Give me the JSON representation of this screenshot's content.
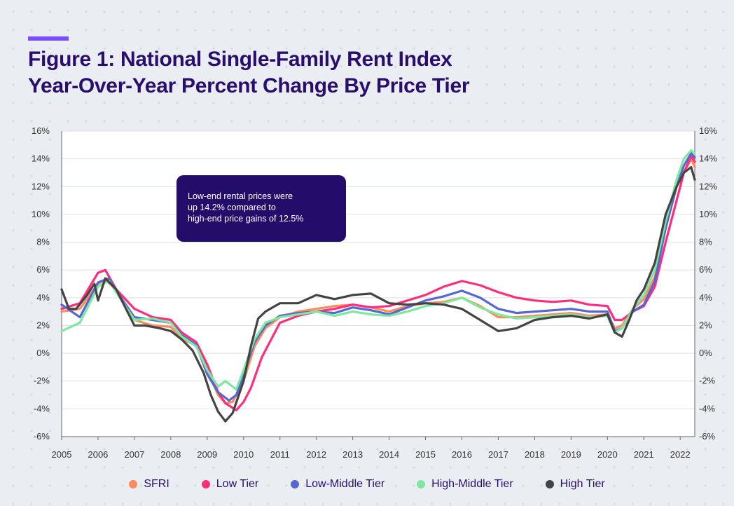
{
  "header": {
    "title_line1": "Figure 1: National Single-Family Rent Index",
    "title_line2": "Year-Over-Year Percent Change By Price Tier"
  },
  "callout": {
    "line1": "Low-end rental prices were",
    "line2": "up 14.2% compared to",
    "line3": "high-end price gains of 12.5%"
  },
  "chart_data": {
    "type": "line",
    "title": "Figure 1: National Single-Family Rent Index Year-Over-Year Percent Change By Price Tier",
    "xlabel": "",
    "ylabel": "",
    "xlim": [
      2005,
      2022.4
    ],
    "ylim": [
      -6,
      16
    ],
    "x_ticks": [
      "2005",
      "2006",
      "2007",
      "2008",
      "2009",
      "2010",
      "2011",
      "2012",
      "2013",
      "2014",
      "2015",
      "2016",
      "2017",
      "2018",
      "2019",
      "2020",
      "2021",
      "2022"
    ],
    "y_ticks": [
      "16%",
      "14%",
      "12%",
      "10%",
      "8%",
      "6%",
      "4%",
      "2%",
      "0%",
      "-2%",
      "-4%",
      "-6%"
    ],
    "grid": "horizontal",
    "legend_position": "bottom",
    "series": [
      {
        "name": "SFRI",
        "color": "#ff8c5a",
        "x": [
          2005,
          2005.5,
          2006,
          2006.2,
          2006.5,
          2007,
          2007.5,
          2008,
          2008.3,
          2008.7,
          2009,
          2009.3,
          2009.5,
          2009.7,
          2010,
          2010.3,
          2010.6,
          2011,
          2011.5,
          2012,
          2012.5,
          2013,
          2013.5,
          2014,
          2014.5,
          2015,
          2015.5,
          2016,
          2016.5,
          2017,
          2017.5,
          2018,
          2018.5,
          2019,
          2019.5,
          2020,
          2020.2,
          2020.4,
          2020.7,
          2021,
          2021.3,
          2021.6,
          2021.9,
          2022.1,
          2022.3,
          2022.4
        ],
        "y": [
          3.0,
          3.2,
          5.0,
          5.3,
          4.6,
          2.4,
          2.0,
          1.9,
          1.0,
          0.6,
          -1.2,
          -3.0,
          -3.6,
          -3.5,
          -2.0,
          0.5,
          1.8,
          2.6,
          3.0,
          3.2,
          3.4,
          3.5,
          3.3,
          3.0,
          3.4,
          3.6,
          3.7,
          4.0,
          3.4,
          2.6,
          2.6,
          2.7,
          2.8,
          2.9,
          2.7,
          2.8,
          1.8,
          2.0,
          3.2,
          3.9,
          5.5,
          9.0,
          12.0,
          13.0,
          14.0,
          13.4
        ]
      },
      {
        "name": "Low Tier",
        "color": "#ff2e7a",
        "x": [
          2005,
          2005.5,
          2006,
          2006.2,
          2006.5,
          2007,
          2007.5,
          2008,
          2008.3,
          2008.7,
          2009,
          2009.3,
          2009.5,
          2009.8,
          2010,
          2010.2,
          2010.5,
          2010.8,
          2011,
          2011.5,
          2012,
          2012.5,
          2013,
          2013.5,
          2014,
          2014.5,
          2015,
          2015.5,
          2016,
          2016.5,
          2017,
          2017.5,
          2018,
          2018.5,
          2019,
          2019.5,
          2020,
          2020.2,
          2020.4,
          2020.7,
          2021,
          2021.3,
          2021.6,
          2021.9,
          2022.1,
          2022.3,
          2022.4
        ],
        "y": [
          3.2,
          3.6,
          5.8,
          6.0,
          4.6,
          3.2,
          2.6,
          2.4,
          1.5,
          0.8,
          -0.8,
          -2.8,
          -3.6,
          -4.1,
          -3.5,
          -2.5,
          -0.3,
          1.2,
          2.2,
          2.7,
          3.0,
          3.2,
          3.5,
          3.3,
          3.4,
          3.8,
          4.2,
          4.8,
          5.2,
          4.9,
          4.4,
          4.0,
          3.8,
          3.7,
          3.8,
          3.5,
          3.4,
          2.4,
          2.4,
          3.0,
          3.4,
          4.8,
          8.0,
          11.0,
          13.0,
          14.2,
          13.8
        ]
      },
      {
        "name": "Low-Middle Tier",
        "color": "#5567d2",
        "x": [
          2005,
          2005.5,
          2006,
          2006.3,
          2006.5,
          2007,
          2007.5,
          2008,
          2008.3,
          2008.7,
          2009,
          2009.3,
          2009.6,
          2009.8,
          2010,
          2010.3,
          2010.6,
          2011,
          2011.5,
          2012,
          2012.5,
          2013,
          2013.5,
          2014,
          2014.5,
          2015,
          2015.5,
          2016,
          2016.5,
          2017,
          2017.5,
          2018,
          2018.5,
          2019,
          2019.5,
          2020,
          2020.2,
          2020.4,
          2020.7,
          2021,
          2021.3,
          2021.6,
          2021.9,
          2022.1,
          2022.3,
          2022.4
        ],
        "y": [
          3.5,
          2.6,
          5.1,
          5.4,
          4.5,
          2.6,
          2.4,
          2.2,
          1.3,
          0.6,
          -1.5,
          -2.8,
          -3.4,
          -3.0,
          -1.5,
          0.8,
          2.0,
          2.7,
          2.9,
          3.0,
          2.9,
          3.3,
          3.1,
          2.8,
          3.3,
          3.8,
          4.1,
          4.5,
          4.0,
          3.2,
          2.9,
          3.0,
          3.1,
          3.2,
          3.0,
          3.0,
          1.6,
          1.8,
          3.0,
          3.5,
          5.2,
          9.0,
          12.0,
          13.5,
          14.4,
          14.1
        ]
      },
      {
        "name": "High-Middle Tier",
        "color": "#7ee8a0",
        "x": [
          2005,
          2005.5,
          2006,
          2006.3,
          2006.5,
          2007,
          2007.5,
          2008,
          2008.3,
          2008.7,
          2009,
          2009.3,
          2009.5,
          2009.8,
          2010,
          2010.3,
          2010.6,
          2011,
          2011.5,
          2012,
          2012.5,
          2013,
          2013.5,
          2014,
          2014.5,
          2015,
          2015.5,
          2016,
          2016.5,
          2017,
          2017.5,
          2018,
          2018.5,
          2019,
          2019.5,
          2020,
          2020.2,
          2020.4,
          2020.7,
          2021,
          2021.3,
          2021.6,
          2021.9,
          2022.1,
          2022.3,
          2022.4
        ],
        "y": [
          1.6,
          2.2,
          4.8,
          5.2,
          4.4,
          2.4,
          2.5,
          2.2,
          1.2,
          0.5,
          -1.2,
          -2.4,
          -2.0,
          -2.6,
          -1.2,
          1.0,
          2.2,
          2.6,
          2.8,
          3.0,
          2.7,
          3.0,
          2.8,
          2.7,
          3.0,
          3.4,
          3.6,
          4.0,
          3.3,
          2.8,
          2.5,
          2.6,
          2.7,
          2.8,
          2.6,
          2.7,
          1.5,
          1.8,
          3.2,
          4.2,
          6.0,
          9.5,
          12.5,
          14.0,
          14.6,
          14.4
        ]
      },
      {
        "name": "High Tier",
        "color": "#444444",
        "x": [
          2005,
          2005.2,
          2005.4,
          2005.7,
          2005.9,
          2006,
          2006.2,
          2006.5,
          2007,
          2007.3,
          2007.7,
          2008,
          2008.3,
          2008.6,
          2008.9,
          2009.1,
          2009.3,
          2009.5,
          2009.7,
          2010,
          2010.2,
          2010.4,
          2010.6,
          2011,
          2011.5,
          2012,
          2012.5,
          2013,
          2013.5,
          2014,
          2014.5,
          2015,
          2015.5,
          2016,
          2016.5,
          2017,
          2017.5,
          2018,
          2018.5,
          2019,
          2019.5,
          2020,
          2020.2,
          2020.4,
          2020.6,
          2020.8,
          2021,
          2021.3,
          2021.6,
          2021.9,
          2022.1,
          2022.3,
          2022.4
        ],
        "y": [
          4.6,
          3.2,
          3.2,
          4.2,
          5.0,
          3.8,
          5.4,
          4.6,
          2.0,
          2.0,
          1.8,
          1.6,
          1.0,
          0.2,
          -1.4,
          -3.0,
          -4.2,
          -4.9,
          -4.3,
          -2.0,
          0.5,
          2.5,
          3.0,
          3.6,
          3.6,
          4.2,
          3.9,
          4.2,
          4.3,
          3.6,
          3.5,
          3.6,
          3.5,
          3.2,
          2.4,
          1.6,
          1.8,
          2.4,
          2.6,
          2.7,
          2.5,
          2.8,
          1.5,
          1.2,
          2.4,
          3.8,
          4.6,
          6.5,
          10.0,
          12.0,
          13.0,
          13.4,
          12.5
        ]
      }
    ]
  }
}
